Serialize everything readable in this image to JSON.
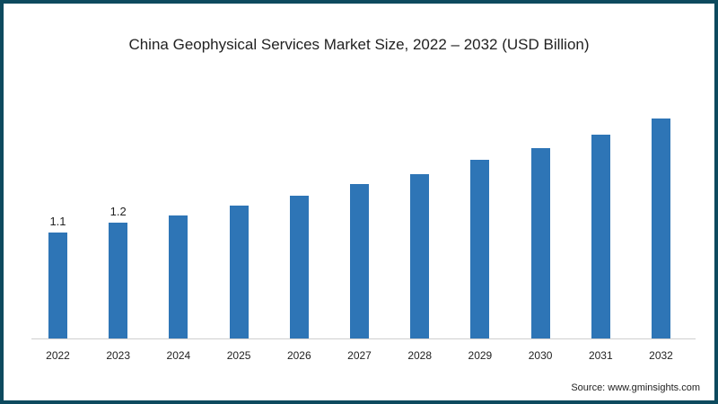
{
  "title": "China Geophysical Services Market Size, 2022 – 2032 (USD Billion)",
  "source": "Source: www.gminsights.com",
  "colors": {
    "bar": "#2e75b6",
    "border": "#0d4a5e"
  },
  "chart_data": {
    "type": "bar",
    "title": "China Geophysical Services Market Size, 2022 – 2032 (USD Billion)",
    "xlabel": "",
    "ylabel": "USD Billion",
    "categories": [
      "2022",
      "2023",
      "2024",
      "2025",
      "2026",
      "2027",
      "2028",
      "2029",
      "2030",
      "2031",
      "2032"
    ],
    "values": [
      1.1,
      1.2,
      1.28,
      1.38,
      1.48,
      1.6,
      1.71,
      1.85,
      1.98,
      2.12,
      2.28
    ],
    "data_labels": {
      "2022": "1.1",
      "2023": "1.2"
    },
    "grid": false,
    "legend": null,
    "ylim": [
      0,
      2.4
    ]
  }
}
